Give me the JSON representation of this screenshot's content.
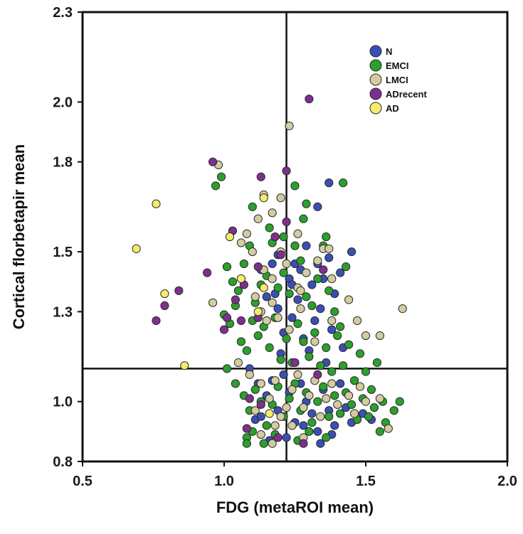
{
  "chart_data": {
    "type": "scatter",
    "title": "",
    "xlabel": "FDG (metaROI mean)",
    "ylabel": "Cortical florbetapir mean",
    "xlim": [
      0.5,
      2.0
    ],
    "ylim": [
      0.8,
      2.3
    ],
    "x_ticks": [
      "0.5",
      "1.0",
      "1.5",
      "2.0"
    ],
    "y_ticks": [
      "0.8",
      "1.0",
      "1.3",
      "1.5",
      "1.8",
      "2.0",
      "2.3"
    ],
    "reference_lines": {
      "x": 1.22,
      "y": 1.11
    },
    "legend_position": "top-right",
    "series": [
      {
        "name": "N",
        "color": "#3a4fb5",
        "points": [
          [
            1.13,
            1.44
          ],
          [
            1.17,
            1.46
          ],
          [
            1.19,
            1.49
          ],
          [
            1.23,
            1.41
          ],
          [
            1.25,
            1.46
          ],
          [
            1.27,
            1.44
          ],
          [
            1.29,
            1.52
          ],
          [
            1.31,
            1.39
          ],
          [
            1.33,
            1.46
          ],
          [
            1.35,
            1.41
          ],
          [
            1.37,
            1.48
          ],
          [
            1.39,
            1.36
          ],
          [
            1.15,
            1.35
          ],
          [
            1.19,
            1.31
          ],
          [
            1.21,
            1.23
          ],
          [
            1.24,
            1.28
          ],
          [
            1.26,
            1.34
          ],
          [
            1.28,
            1.21
          ],
          [
            1.3,
            1.17
          ],
          [
            1.32,
            1.27
          ],
          [
            1.34,
            1.31
          ],
          [
            1.36,
            1.13
          ],
          [
            1.38,
            1.24
          ],
          [
            1.42,
            1.18
          ],
          [
            1.12,
            1.06
          ],
          [
            1.15,
            1.02
          ],
          [
            1.17,
            1.07
          ],
          [
            1.19,
            0.97
          ],
          [
            1.21,
            1.09
          ],
          [
            1.23,
            1.03
          ],
          [
            1.25,
            0.93
          ],
          [
            1.27,
            1.06
          ],
          [
            1.29,
            1.0
          ],
          [
            1.31,
            0.96
          ],
          [
            1.33,
            0.9
          ],
          [
            1.35,
            1.04
          ],
          [
            1.37,
            0.97
          ],
          [
            1.39,
            0.92
          ],
          [
            1.41,
            1.06
          ],
          [
            1.43,
            0.98
          ],
          [
            1.45,
            0.93
          ],
          [
            1.49,
            0.96
          ],
          [
            1.52,
            0.94
          ],
          [
            1.11,
            0.94
          ],
          [
            1.16,
            0.87
          ],
          [
            1.22,
            0.88
          ],
          [
            1.28,
            0.92
          ],
          [
            1.34,
            0.86
          ],
          [
            1.38,
            0.89
          ],
          [
            1.13,
            0.95
          ],
          [
            1.2,
            1.16
          ],
          [
            1.24,
            1.39
          ],
          [
            1.37,
            1.73
          ],
          [
            1.33,
            1.65
          ],
          [
            1.45,
            1.5
          ],
          [
            1.41,
            1.43
          ],
          [
            1.09,
            1.11
          ],
          [
            1.18,
            1.36
          ]
        ]
      },
      {
        "name": "EMCI",
        "color": "#2ca02c",
        "points": [
          [
            0.97,
            1.72
          ],
          [
            0.99,
            1.75
          ],
          [
            1.01,
            1.45
          ],
          [
            1.03,
            1.4
          ],
          [
            1.05,
            1.37
          ],
          [
            1.07,
            1.46
          ],
          [
            1.09,
            1.52
          ],
          [
            1.11,
            1.33
          ],
          [
            1.13,
            1.39
          ],
          [
            1.15,
            1.42
          ],
          [
            1.17,
            1.53
          ],
          [
            1.19,
            1.38
          ],
          [
            1.21,
            1.43
          ],
          [
            1.23,
            1.36
          ],
          [
            1.25,
            1.52
          ],
          [
            1.27,
            1.47
          ],
          [
            1.29,
            1.35
          ],
          [
            1.31,
            1.32
          ],
          [
            1.33,
            1.41
          ],
          [
            1.35,
            1.52
          ],
          [
            1.37,
            1.37
          ],
          [
            1.39,
            1.3
          ],
          [
            1.41,
            1.25
          ],
          [
            1.43,
            1.45
          ],
          [
            1.0,
            1.29
          ],
          [
            1.02,
            1.26
          ],
          [
            1.04,
            1.32
          ],
          [
            1.06,
            1.2
          ],
          [
            1.08,
            1.17
          ],
          [
            1.1,
            1.27
          ],
          [
            1.12,
            1.22
          ],
          [
            1.14,
            1.25
          ],
          [
            1.16,
            1.18
          ],
          [
            1.18,
            1.28
          ],
          [
            1.2,
            1.14
          ],
          [
            1.22,
            1.21
          ],
          [
            1.24,
            1.13
          ],
          [
            1.26,
            1.26
          ],
          [
            1.28,
            1.2
          ],
          [
            1.3,
            1.15
          ],
          [
            1.32,
            1.23
          ],
          [
            1.34,
            1.12
          ],
          [
            1.36,
            1.18
          ],
          [
            1.38,
            1.1
          ],
          [
            1.4,
            1.22
          ],
          [
            1.42,
            1.12
          ],
          [
            1.44,
            1.19
          ],
          [
            1.46,
            1.07
          ],
          [
            1.48,
            1.16
          ],
          [
            1.5,
            1.1
          ],
          [
            1.52,
            1.04
          ],
          [
            1.54,
            1.13
          ],
          [
            1.56,
            1.0
          ],
          [
            1.01,
            1.11
          ],
          [
            1.04,
            1.06
          ],
          [
            1.07,
            1.02
          ],
          [
            1.09,
            0.97
          ],
          [
            1.11,
            1.04
          ],
          [
            1.13,
            1.0
          ],
          [
            1.15,
            0.92
          ],
          [
            1.17,
            0.99
          ],
          [
            1.19,
            1.05
          ],
          [
            1.21,
            0.95
          ],
          [
            1.23,
            1.01
          ],
          [
            1.25,
            1.06
          ],
          [
            1.27,
            0.97
          ],
          [
            1.29,
            1.03
          ],
          [
            1.31,
            0.93
          ],
          [
            1.33,
            1.0
          ],
          [
            1.35,
            1.05
          ],
          [
            1.37,
            0.95
          ],
          [
            1.39,
            1.02
          ],
          [
            1.41,
            0.96
          ],
          [
            1.43,
            1.03
          ],
          [
            1.45,
            0.99
          ],
          [
            1.47,
            0.94
          ],
          [
            1.49,
            1.01
          ],
          [
            1.51,
            0.95
          ],
          [
            1.53,
            0.98
          ],
          [
            1.55,
            0.9
          ],
          [
            1.57,
            0.93
          ],
          [
            1.6,
            0.97
          ],
          [
            1.62,
            1.0
          ],
          [
            1.08,
            0.88
          ],
          [
            1.1,
            0.9
          ],
          [
            1.14,
            0.86
          ],
          [
            1.18,
            0.89
          ],
          [
            1.26,
            0.87
          ],
          [
            1.3,
            0.9
          ],
          [
            1.36,
            0.88
          ],
          [
            1.08,
            0.86
          ],
          [
            1.42,
            1.73
          ],
          [
            1.29,
            1.66
          ],
          [
            1.36,
            1.55
          ],
          [
            1.28,
            1.61
          ],
          [
            1.16,
            1.58
          ],
          [
            1.25,
            1.72
          ],
          [
            1.21,
            1.55
          ],
          [
            1.1,
            1.65
          ]
        ]
      },
      {
        "name": "LMCI",
        "color": "#d2cca0",
        "points": [
          [
            0.98,
            1.79
          ],
          [
            1.23,
            1.92
          ],
          [
            1.14,
            1.69
          ],
          [
            1.17,
            1.63
          ],
          [
            1.12,
            1.61
          ],
          [
            1.08,
            1.56
          ],
          [
            1.06,
            1.53
          ],
          [
            1.1,
            1.5
          ],
          [
            1.14,
            1.44
          ],
          [
            1.17,
            1.41
          ],
          [
            1.2,
            1.5
          ],
          [
            1.22,
            1.46
          ],
          [
            1.26,
            1.38
          ],
          [
            1.29,
            1.43
          ],
          [
            1.33,
            1.47
          ],
          [
            1.35,
            1.51
          ],
          [
            1.38,
            1.41
          ],
          [
            1.11,
            1.35
          ],
          [
            1.13,
            1.3
          ],
          [
            1.15,
            1.27
          ],
          [
            1.17,
            1.33
          ],
          [
            1.19,
            1.28
          ],
          [
            1.23,
            1.24
          ],
          [
            1.27,
            1.31
          ],
          [
            1.32,
            1.2
          ],
          [
            1.38,
            1.27
          ],
          [
            1.44,
            1.34
          ],
          [
            1.47,
            1.27
          ],
          [
            1.5,
            1.22
          ],
          [
            1.55,
            1.22
          ],
          [
            1.63,
            1.31
          ],
          [
            0.96,
            1.33
          ],
          [
            1.05,
            1.13
          ],
          [
            1.09,
            1.09
          ],
          [
            1.13,
            1.06
          ],
          [
            1.16,
            1.01
          ],
          [
            1.18,
            1.07
          ],
          [
            1.22,
            0.98
          ],
          [
            1.24,
            1.04
          ],
          [
            1.26,
            1.09
          ],
          [
            1.28,
            0.98
          ],
          [
            1.3,
            1.02
          ],
          [
            1.32,
            1.07
          ],
          [
            1.34,
            0.95
          ],
          [
            1.36,
            1.01
          ],
          [
            1.38,
            1.06
          ],
          [
            1.4,
            0.99
          ],
          [
            1.44,
            1.02
          ],
          [
            1.46,
            0.96
          ],
          [
            1.48,
            1.05
          ],
          [
            1.5,
            1.0
          ],
          [
            1.55,
            1.01
          ],
          [
            1.58,
            0.91
          ],
          [
            1.11,
            0.97
          ],
          [
            1.13,
            0.89
          ],
          [
            1.17,
            0.86
          ],
          [
            1.2,
            0.95
          ],
          [
            1.24,
            0.92
          ],
          [
            1.28,
            0.88
          ],
          [
            1.18,
            0.92
          ],
          [
            1.2,
            1.68
          ],
          [
            1.26,
            1.56
          ],
          [
            1.37,
            1.51
          ],
          [
            1.27,
            1.37
          ]
        ]
      },
      {
        "name": "ADrecent",
        "color": "#7e2f8e",
        "points": [
          [
            1.3,
            2.01
          ],
          [
            0.96,
            1.8
          ],
          [
            1.13,
            1.75
          ],
          [
            1.22,
            1.77
          ],
          [
            1.03,
            1.57
          ],
          [
            1.18,
            1.55
          ],
          [
            1.22,
            1.6
          ],
          [
            0.94,
            1.43
          ],
          [
            0.84,
            1.37
          ],
          [
            0.79,
            1.32
          ],
          [
            0.76,
            1.27
          ],
          [
            1.07,
            1.39
          ],
          [
            1.12,
            1.45
          ],
          [
            1.2,
            1.49
          ],
          [
            1.35,
            1.44
          ],
          [
            1.01,
            1.28
          ],
          [
            1.0,
            1.24
          ],
          [
            1.04,
            1.34
          ],
          [
            1.06,
            1.27
          ],
          [
            1.12,
            1.28
          ],
          [
            1.25,
            1.13
          ],
          [
            1.09,
            1.01
          ],
          [
            1.13,
            0.99
          ],
          [
            1.19,
            0.88
          ],
          [
            1.28,
            0.86
          ],
          [
            1.33,
            1.09
          ],
          [
            1.08,
            0.91
          ]
        ]
      },
      {
        "name": "AD",
        "color": "#f5ec6b",
        "points": [
          [
            0.76,
            1.66
          ],
          [
            0.69,
            1.51
          ],
          [
            1.14,
            1.68
          ],
          [
            1.02,
            1.55
          ],
          [
            0.79,
            1.36
          ],
          [
            1.06,
            1.41
          ],
          [
            1.14,
            1.38
          ],
          [
            1.12,
            1.3
          ],
          [
            0.86,
            1.12
          ],
          [
            1.16,
            0.96
          ]
        ]
      }
    ]
  }
}
